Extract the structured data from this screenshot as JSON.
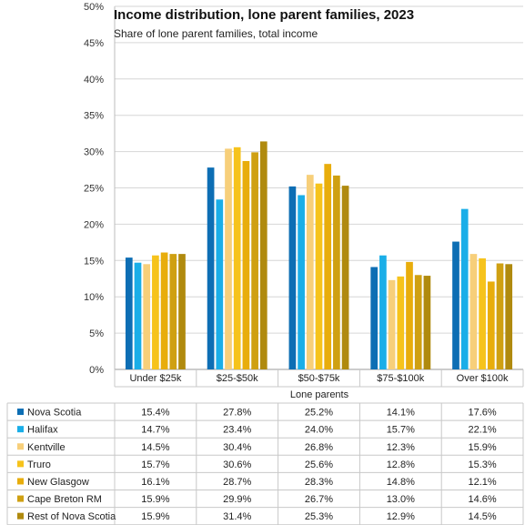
{
  "chart_data": {
    "type": "bar",
    "title": "Income distribution,  lone parent families, 2023",
    "subtitle": "Share of lone parent families, total income",
    "xlabel": "Lone parents",
    "ylabel": "",
    "ylim": [
      0,
      50
    ],
    "y_ticks": [
      "0%",
      "5%",
      "10%",
      "15%",
      "20%",
      "25%",
      "30%",
      "35%",
      "40%",
      "45%",
      "50%"
    ],
    "grid": true,
    "legend": "data-table-below",
    "categories": [
      "Under $25k",
      "$25-$50k",
      "$50-$75k",
      "$75-$100k",
      "Over $100k"
    ],
    "series": [
      {
        "name": "Nova Scotia",
        "color": "#0d6eb4",
        "values": [
          15.4,
          27.8,
          25.2,
          14.1,
          17.6
        ],
        "labels": [
          "15.4%",
          "27.8%",
          "25.2%",
          "14.1%",
          "17.6%"
        ]
      },
      {
        "name": "Halifax",
        "color": "#1aaee8",
        "values": [
          14.7,
          23.4,
          24.0,
          15.7,
          22.1
        ],
        "labels": [
          "14.7%",
          "23.4%",
          "24.0%",
          "15.7%",
          "22.1%"
        ]
      },
      {
        "name": "Kentville",
        "color": "#f7cf7a",
        "values": [
          14.5,
          30.4,
          26.8,
          12.3,
          15.9
        ],
        "labels": [
          "14.5%",
          "30.4%",
          "26.8%",
          "12.3%",
          "15.9%"
        ]
      },
      {
        "name": "Truro",
        "color": "#f6c31c",
        "values": [
          15.7,
          30.6,
          25.6,
          12.8,
          15.3
        ],
        "labels": [
          "15.7%",
          "30.6%",
          "25.6%",
          "12.8%",
          "15.3%"
        ]
      },
      {
        "name": "New Glasgow",
        "color": "#e8ad0c",
        "values": [
          16.1,
          28.7,
          28.3,
          14.8,
          12.1
        ],
        "labels": [
          "16.1%",
          "28.7%",
          "28.3%",
          "14.8%",
          "12.1%"
        ]
      },
      {
        "name": "Cape Breton RM",
        "color": "#cfa012",
        "values": [
          15.9,
          29.9,
          26.7,
          13.0,
          14.6
        ],
        "labels": [
          "15.9%",
          "29.9%",
          "26.7%",
          "13.0%",
          "14.6%"
        ]
      },
      {
        "name": "Rest of Nova Scotia",
        "color": "#b08a0e",
        "values": [
          15.9,
          31.4,
          25.3,
          12.9,
          14.5
        ],
        "labels": [
          "15.9%",
          "31.4%",
          "25.3%",
          "12.9%",
          "14.5%"
        ]
      }
    ]
  }
}
